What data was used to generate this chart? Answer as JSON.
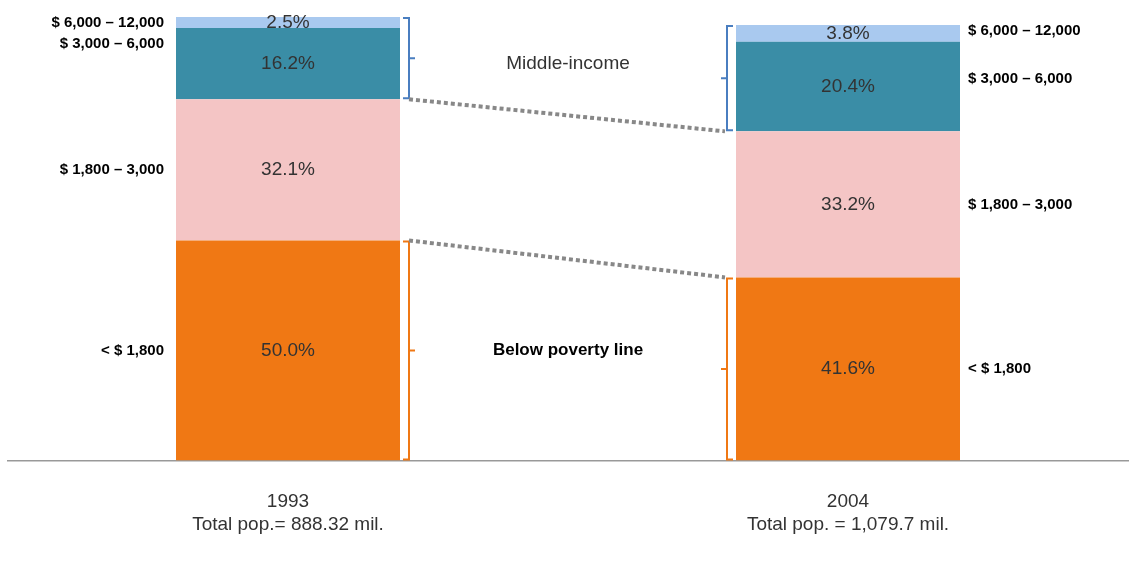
{
  "chart_data": {
    "type": "bar",
    "stacked": true,
    "categories": [
      "1993\nTotal pop.= 888.32 mil.",
      "2004\nTotal pop. = 1,079.7 mil."
    ],
    "series": [
      {
        "name": "< $ 1,800",
        "color": "#f07814",
        "values": [
          50.0,
          41.6
        ],
        "value_labels": [
          "50.0%",
          "41.6%"
        ]
      },
      {
        "name": "$ 1,800 – 3,000",
        "color": "#f4c5c5",
        "values": [
          32.1,
          33.2
        ],
        "value_labels": [
          "32.1%",
          "33.2%"
        ]
      },
      {
        "name": "$ 3,000 – 6,000",
        "color": "#3a8da6",
        "values": [
          16.2,
          20.4
        ],
        "value_labels": [
          "16.2%",
          "20.4%"
        ]
      },
      {
        "name": "$ 6,000 – 12,000",
        "color": "#a9c9ef",
        "values": [
          2.5,
          3.8
        ],
        "value_labels": [
          "2.5%",
          "3.8%"
        ]
      }
    ],
    "annotations": [
      "Middle-income",
      "Below poverty line"
    ],
    "legend": false
  }
}
